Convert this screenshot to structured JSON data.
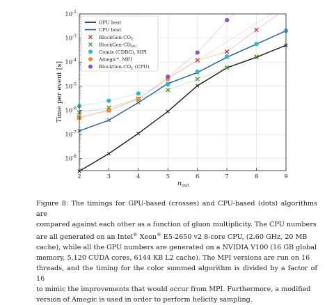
{
  "chart_data": {
    "type": "line",
    "xlabel": "n",
    "xlabel_sub": "out",
    "ylabel": "Time per event [s]",
    "xlim": [
      2,
      9
    ],
    "ylim_log10": [
      -8.5,
      -2
    ],
    "y_scale": "log",
    "x_ticks": [
      "2",
      "3",
      "4",
      "5",
      "6",
      "7",
      "8",
      "9"
    ],
    "y_ticks": [
      {
        "base": "10",
        "exp": "-8",
        "value": -8
      },
      {
        "base": "10",
        "exp": "-7",
        "value": -7
      },
      {
        "base": "10",
        "exp": "-6",
        "value": -6
      },
      {
        "base": "10",
        "exp": "-5",
        "value": -5
      },
      {
        "base": "10",
        "exp": "-4",
        "value": -4
      },
      {
        "base": "10",
        "exp": "-3",
        "value": -3
      },
      {
        "base": "10",
        "exp": "-2",
        "value": -2
      }
    ],
    "grid": true,
    "legend_position": "top-left",
    "series": [
      {
        "name": "GPU best",
        "kind": "line",
        "color": "#1a1a1a",
        "x": [
          2,
          3,
          4,
          5,
          6,
          7,
          8,
          9
        ],
        "y": [
          3e-09,
          1.6e-08,
          1.1e-07,
          9e-07,
          1.05e-05,
          5.8e-05,
          0.00016,
          0.0005
        ]
      },
      {
        "name": "CPU best",
        "kind": "line",
        "color": "#1f5f9e",
        "x": [
          2,
          3,
          4,
          5,
          6,
          7,
          8,
          9
        ],
        "y": [
          1.4e-07,
          3.9e-07,
          2.1e-06,
          1.3e-05,
          3.7e-05,
          0.00016,
          0.00056,
          0.002
        ]
      },
      {
        "name": "BlockGen-CO",
        "name_sub": "Σ",
        "kind": "cross",
        "color": "#d6273a",
        "x": [
          2,
          3,
          4,
          5,
          6,
          7,
          8
        ],
        "y": [
          5e-07,
          1e-06,
          3e-06,
          2.2e-05,
          0.00012,
          0.00027,
          0.0022
        ]
      },
      {
        "name": "BlockGen-CD",
        "name_sub": "MC",
        "kind": "cross",
        "color": "#3a9b2e",
        "x": [
          2,
          3,
          4,
          5,
          6,
          7,
          8
        ],
        "y": [
          8e-07,
          1.3e-06,
          3e-06,
          7e-06,
          2e-05,
          6e-05,
          0.00017
        ]
      },
      {
        "name": "Comix (CDBG), MPI",
        "kind": "dot",
        "color": "#30b8cf",
        "x": [
          2,
          3,
          4,
          5,
          6,
          7,
          8,
          9
        ],
        "y": [
          1.5e-06,
          2.5e-06,
          5e-06,
          1.2e-05,
          4e-05,
          0.00017,
          0.00056,
          0.002
        ]
      },
      {
        "name": "Amegic*, MPI",
        "kind": "dot",
        "color": "#f28a1e",
        "x": [
          2,
          3,
          4,
          5
        ],
        "y": [
          5e-07,
          1e-06,
          3e-06,
          2e-05
        ]
      },
      {
        "name": "BlockGen-CO",
        "name_sub": "Σ",
        "name_suffix": " (CPU)",
        "kind": "dot",
        "color": "#8a55c8",
        "x": [
          5,
          6,
          7
        ],
        "y": [
          2.5e-05,
          0.00025,
          0.0055
        ]
      }
    ]
  },
  "caption": {
    "line1": "Figure 8: The timings for GPU-based (crosses) and CPU-based (dots) algorithms are",
    "line2": "compared against each other as a function of gluon multiplicity. The CPU numbers",
    "line3a": "are all generated on an Intel",
    "line3_sup1": "®",
    "line3b": " Xeon",
    "line3_sup2": "®",
    "line3c": " E5-2650 v2 8-core CPU, (2.60 GHz, 20 MB",
    "line4": "cache), while all the GPU numbers are generated on a NVIDIA V100 (16 GB global",
    "line5": "memory, 5,120 CUDA cores, 6144 KB L2 cache). The MPI versions are run on 16",
    "line6": "threads, and the timing for the color summed algorithm is divided by a factor of 16",
    "line7": "to mimic the improvements that would occur from MPI. Furthermore, a modified",
    "line8": "version of Amegic is used in order to perform helicity sampling."
  }
}
